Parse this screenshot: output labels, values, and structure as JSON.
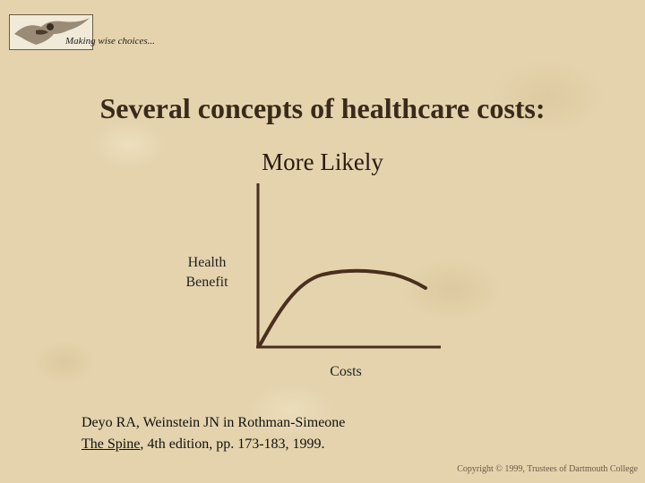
{
  "header": {
    "tagline": "Making wise choices..."
  },
  "slide": {
    "title": "Several concepts of healthcare costs:",
    "subtitle": "More Likely"
  },
  "diagram": {
    "y_label_line1": "Health",
    "y_label_line2": "Benefit",
    "x_label": "Costs"
  },
  "citation": {
    "line1": "Deyo RA, Weinstein JN in Rothman-Simeone",
    "book_title": "The Spine",
    "line2_rest": ", 4th edition, pp. 173-183, 1999."
  },
  "footer": {
    "copyright": "Copyright © 1999, Trustees of Dartmouth College"
  },
  "colors": {
    "axis": "#4a2e1e",
    "curve": "#4a2e1e",
    "title": "#3a2a1a"
  }
}
